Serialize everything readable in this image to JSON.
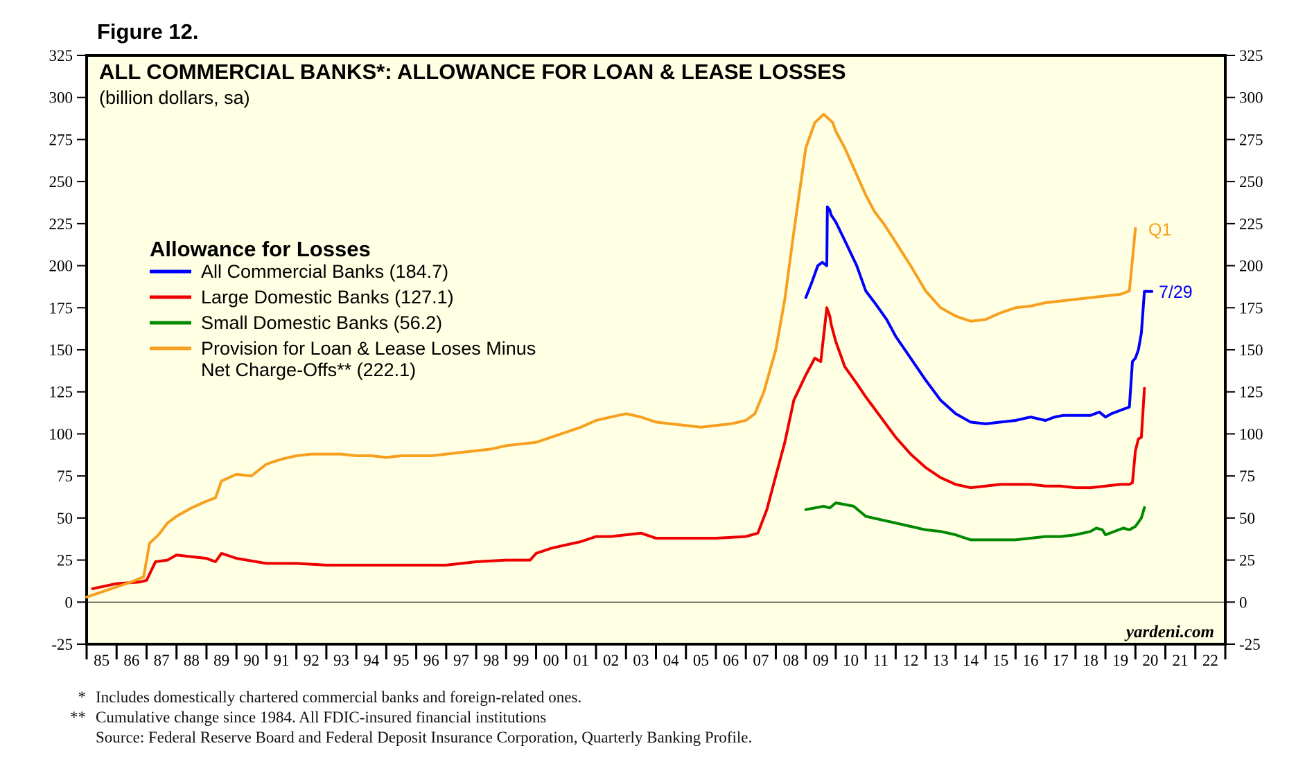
{
  "figure_label": "Figure 12.",
  "watermark": "yardeni.com",
  "footnotes": [
    {
      "mark": "*",
      "text": "Includes domestically chartered commercial banks and foreign-related ones."
    },
    {
      "mark": "**",
      "text": "Cumulative change since 1984. All FDIC-insured financial institutions"
    },
    {
      "mark": "",
      "text": "Source: Federal Reserve Board and Federal Deposit Insurance Corporation, Quarterly Banking Profile."
    }
  ],
  "chart_data": {
    "type": "line",
    "title": "ALL COMMERCIAL BANKS*: ALLOWANCE FOR LOAN & LEASE LOSSES",
    "subtitle": "(billion dollars, sa)",
    "xlabel": "",
    "ylabel": "",
    "xlim": [
      1985,
      2023
    ],
    "ylim": [
      -25,
      325
    ],
    "yticks": [
      -25,
      0,
      25,
      50,
      75,
      100,
      125,
      150,
      175,
      200,
      225,
      250,
      275,
      300,
      325
    ],
    "x_tick_labels": [
      "85",
      "86",
      "87",
      "88",
      "89",
      "90",
      "91",
      "92",
      "93",
      "94",
      "95",
      "96",
      "97",
      "98",
      "99",
      "00",
      "01",
      "02",
      "03",
      "04",
      "05",
      "06",
      "07",
      "08",
      "09",
      "10",
      "11",
      "12",
      "13",
      "14",
      "15",
      "16",
      "17",
      "18",
      "19",
      "20",
      "21",
      "22"
    ],
    "grid": false,
    "legend_title": "Allowance for Losses",
    "legend_position": "left",
    "annotations": [
      {
        "text": "Q1",
        "series": "Provision for Loan & Lease Loses Minus Net Charge-Offs** (222.1)"
      },
      {
        "text": "7/29",
        "series": "All Commercial Banks (184.7)"
      }
    ],
    "series": [
      {
        "name": "All Commercial Banks (184.7)",
        "color": "#0000ff",
        "x": [
          2009.0,
          2009.2,
          2009.4,
          2009.55,
          2009.7,
          2009.72,
          2009.8,
          2009.85,
          2010.0,
          2010.3,
          2010.7,
          2011.0,
          2011.3,
          2011.7,
          2012.0,
          2012.5,
          2013.0,
          2013.5,
          2014.0,
          2014.5,
          2015.0,
          2015.5,
          2016.0,
          2016.5,
          2017.0,
          2017.3,
          2017.6,
          2018.0,
          2018.5,
          2018.8,
          2019.0,
          2019.2,
          2019.5,
          2019.8,
          2019.9,
          2020.0,
          2020.1,
          2020.2,
          2020.3,
          2020.4,
          2020.5,
          2020.55
        ],
        "values": [
          181,
          190,
          200,
          202,
          200,
          235,
          233,
          230,
          226,
          215,
          200,
          185,
          178,
          168,
          158,
          145,
          132,
          120,
          112,
          107,
          106,
          107,
          108,
          110,
          108,
          110,
          111,
          111,
          111,
          113,
          110,
          112,
          114,
          116,
          143,
          145,
          150,
          160,
          184.7,
          184.7,
          184.7,
          184.7
        ]
      },
      {
        "name": "Large Domestic Banks (127.1)",
        "color": "#ee0000",
        "x": [
          1985.2,
          1986.0,
          1986.8,
          1987.0,
          1987.3,
          1987.7,
          1988.0,
          1988.5,
          1989.0,
          1989.3,
          1989.5,
          1990.0,
          1991.0,
          1992.0,
          1993.0,
          1994.0,
          1995.0,
          1996.0,
          1997.0,
          1998.0,
          1999.0,
          1999.8,
          2000.0,
          2000.5,
          2001.0,
          2001.5,
          2002.0,
          2002.5,
          2003.0,
          2003.5,
          2004.0,
          2005.0,
          2006.0,
          2007.0,
          2007.4,
          2007.7,
          2008.0,
          2008.3,
          2008.6,
          2009.0,
          2009.3,
          2009.5,
          2009.7,
          2009.8,
          2009.85,
          2010.0,
          2010.3,
          2010.7,
          2011.0,
          2011.5,
          2012.0,
          2012.5,
          2013.0,
          2013.5,
          2014.0,
          2014.5,
          2015.0,
          2015.5,
          2016.0,
          2016.5,
          2017.0,
          2017.5,
          2018.0,
          2018.5,
          2019.0,
          2019.5,
          2019.8,
          2019.9,
          2020.0,
          2020.1,
          2020.2,
          2020.3
        ],
        "values": [
          8,
          11,
          12,
          13,
          24,
          25,
          28,
          27,
          26,
          24,
          29,
          26,
          23,
          23,
          22,
          22,
          22,
          22,
          22,
          24,
          25,
          25,
          29,
          32,
          34,
          36,
          39,
          39,
          40,
          41,
          38,
          38,
          38,
          39,
          41,
          55,
          75,
          95,
          120,
          135,
          145,
          143,
          175,
          170,
          165,
          155,
          140,
          130,
          122,
          110,
          98,
          88,
          80,
          74,
          70,
          68,
          69,
          70,
          70,
          70,
          69,
          69,
          68,
          68,
          69,
          70,
          70,
          71,
          90,
          97,
          98,
          127.1
        ]
      },
      {
        "name": "Small Domestic Banks (56.2)",
        "color": "#008800",
        "x": [
          2009.0,
          2009.3,
          2009.6,
          2009.8,
          2010.0,
          2010.3,
          2010.6,
          2011.0,
          2011.5,
          2012.0,
          2012.5,
          2013.0,
          2013.5,
          2014.0,
          2014.5,
          2015.0,
          2015.5,
          2016.0,
          2016.5,
          2017.0,
          2017.5,
          2018.0,
          2018.5,
          2018.7,
          2018.9,
          2019.0,
          2019.3,
          2019.6,
          2019.8,
          2020.0,
          2020.2,
          2020.3
        ],
        "values": [
          55,
          56,
          57,
          56,
          59,
          58,
          57,
          51,
          49,
          47,
          45,
          43,
          42,
          40,
          37,
          37,
          37,
          37,
          38,
          39,
          39,
          40,
          42,
          44,
          43,
          40,
          42,
          44,
          43,
          45,
          50,
          56.2
        ]
      },
      {
        "name": "Provision for Loan & Lease Loses Minus Net Charge-Offs** (222.1)",
        "color": "#f7a020",
        "x": [
          1985.0,
          1985.5,
          1986.0,
          1986.5,
          1986.9,
          1987.1,
          1987.4,
          1987.7,
          1988.0,
          1988.5,
          1989.0,
          1989.3,
          1989.5,
          1990.0,
          1990.5,
          1991.0,
          1991.5,
          1992.0,
          1992.5,
          1993.0,
          1993.5,
          1994.0,
          1994.5,
          1995.0,
          1995.5,
          1996.0,
          1996.5,
          1997.0,
          1997.5,
          1998.0,
          1998.5,
          1999.0,
          1999.5,
          2000.0,
          2000.5,
          2001.0,
          2001.5,
          2002.0,
          2002.5,
          2003.0,
          2003.5,
          2004.0,
          2004.5,
          2005.0,
          2005.5,
          2006.0,
          2006.5,
          2007.0,
          2007.3,
          2007.6,
          2008.0,
          2008.3,
          2008.6,
          2009.0,
          2009.3,
          2009.6,
          2009.9,
          2010.0,
          2010.3,
          2010.6,
          2011.0,
          2011.3,
          2011.6,
          2012.0,
          2012.5,
          2013.0,
          2013.5,
          2014.0,
          2014.5,
          2015.0,
          2015.5,
          2016.0,
          2016.5,
          2017.0,
          2017.5,
          2018.0,
          2018.5,
          2019.0,
          2019.5,
          2019.8,
          2020.0
        ],
        "values": [
          3,
          6,
          9,
          12,
          15,
          35,
          40,
          47,
          51,
          56,
          60,
          62,
          72,
          76,
          75,
          82,
          85,
          87,
          88,
          88,
          88,
          87,
          87,
          86,
          87,
          87,
          87,
          88,
          89,
          90,
          91,
          93,
          94,
          95,
          98,
          101,
          104,
          108,
          110,
          112,
          110,
          107,
          106,
          105,
          104,
          105,
          106,
          108,
          112,
          125,
          150,
          180,
          220,
          270,
          285,
          290,
          285,
          280,
          270,
          258,
          242,
          232,
          225,
          214,
          200,
          185,
          175,
          170,
          167,
          168,
          172,
          175,
          176,
          178,
          179,
          180,
          181,
          182,
          183,
          185,
          222.1
        ]
      }
    ]
  }
}
